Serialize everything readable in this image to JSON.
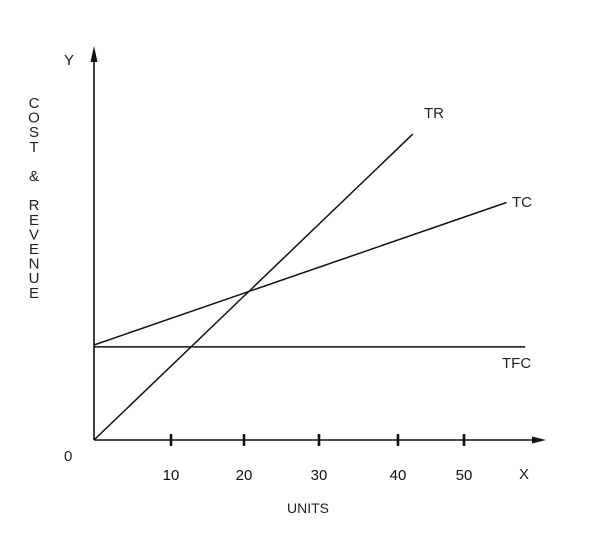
{
  "chart_data": {
    "type": "line",
    "title": "",
    "xlabel": "UNITS",
    "ylabel": "COST & REVENUE",
    "x_axis_letter": "X",
    "y_axis_letter": "Y",
    "origin_label": "0",
    "x_ticks": [
      10,
      20,
      30,
      40,
      50
    ],
    "xlim": [
      0,
      60
    ],
    "ylim": [
      0,
      100
    ],
    "grid": false,
    "series": [
      {
        "name": "TR",
        "x": [
          0,
          42.5
        ],
        "y": [
          0,
          80.5
        ]
      },
      {
        "name": "TC",
        "x": [
          0,
          55
        ],
        "y": [
          25,
          62.5
        ]
      },
      {
        "name": "TFC",
        "x": [
          0,
          57.5
        ],
        "y": [
          24.5,
          24.5
        ]
      }
    ]
  }
}
